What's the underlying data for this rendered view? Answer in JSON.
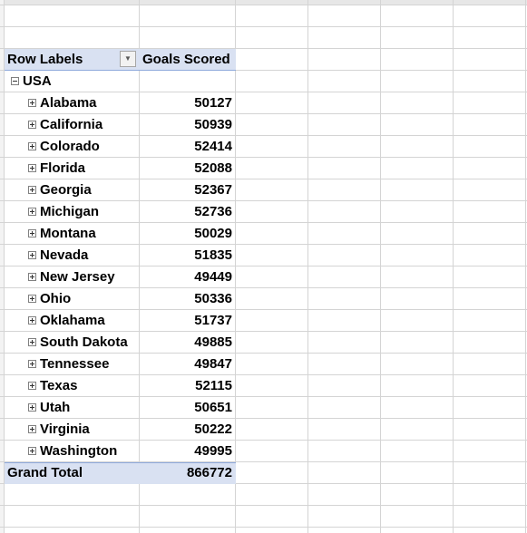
{
  "pivot": {
    "row_labels_header": "Row Labels",
    "value_header": "Goals Scored",
    "group_label": "USA",
    "rows": [
      {
        "label": "Alabama",
        "value": "50127"
      },
      {
        "label": "California",
        "value": "50939"
      },
      {
        "label": "Colorado",
        "value": "52414"
      },
      {
        "label": "Florida",
        "value": "52088"
      },
      {
        "label": "Georgia",
        "value": "52367"
      },
      {
        "label": "Michigan",
        "value": "52736"
      },
      {
        "label": "Montana",
        "value": "50029"
      },
      {
        "label": "Nevada",
        "value": "51835"
      },
      {
        "label": "New Jersey",
        "value": "49449"
      },
      {
        "label": "Ohio",
        "value": "50336"
      },
      {
        "label": "Oklahama",
        "value": "51737"
      },
      {
        "label": "South Dakota",
        "value": "49885"
      },
      {
        "label": "Tennessee",
        "value": "49847"
      },
      {
        "label": "Texas",
        "value": "52115"
      },
      {
        "label": "Utah",
        "value": "50651"
      },
      {
        "label": "Virginia",
        "value": "50222"
      },
      {
        "label": "Washington",
        "value": "49995"
      }
    ],
    "grand_total_label": "Grand Total",
    "grand_total_value": "866772"
  },
  "colors": {
    "header_fill": "#d9e1f2",
    "gridline": "#d4d4d4"
  }
}
